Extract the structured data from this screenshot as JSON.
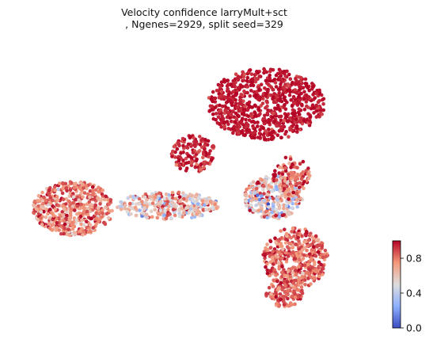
{
  "chart_data": {
    "type": "scatter",
    "title_line1": "Velocity confidence larryMult+sct",
    "title_line2": ", Ngenes=2929, split seed=329",
    "xlabel": "",
    "ylabel": "",
    "axes_visible": false,
    "colormap": "coolwarm",
    "colorbar": {
      "vmin": 0.0,
      "vmax": 1.0,
      "ticks": [
        0.0,
        0.4,
        0.8
      ],
      "tick_labels": [
        "0.0",
        "0.4",
        "0.8"
      ],
      "placement": "bottom-right"
    },
    "point_groups": [
      {
        "name": "upper-cluster",
        "cx": 0.67,
        "cy": 0.78,
        "rx": 0.16,
        "ry": 0.13,
        "n": 780,
        "value_mean": 0.97,
        "value_sd": 0.04
      },
      {
        "name": "upper-left-tail",
        "cx": 0.47,
        "cy": 0.6,
        "rx": 0.06,
        "ry": 0.07,
        "n": 140,
        "value_mean": 0.93,
        "value_sd": 0.07
      },
      {
        "name": "left-arm",
        "cx": 0.14,
        "cy": 0.4,
        "rx": 0.11,
        "ry": 0.1,
        "n": 520,
        "value_mean": 0.78,
        "value_sd": 0.12
      },
      {
        "name": "bridge",
        "cx": 0.4,
        "cy": 0.41,
        "rx": 0.14,
        "ry": 0.05,
        "n": 330,
        "value_mean": 0.62,
        "value_sd": 0.2
      },
      {
        "name": "center-junction",
        "cx": 0.69,
        "cy": 0.44,
        "rx": 0.08,
        "ry": 0.08,
        "n": 300,
        "value_mean": 0.62,
        "value_sd": 0.22
      },
      {
        "name": "right-column",
        "cx": 0.74,
        "cy": 0.52,
        "rx": 0.05,
        "ry": 0.07,
        "n": 110,
        "value_mean": 0.85,
        "value_sd": 0.12
      },
      {
        "name": "lower-lobe",
        "cx": 0.75,
        "cy": 0.22,
        "rx": 0.09,
        "ry": 0.11,
        "n": 420,
        "value_mean": 0.84,
        "value_sd": 0.1
      },
      {
        "name": "bottom-tip",
        "cx": 0.72,
        "cy": 0.09,
        "rx": 0.05,
        "ry": 0.05,
        "n": 120,
        "value_mean": 0.86,
        "value_sd": 0.08
      }
    ]
  }
}
